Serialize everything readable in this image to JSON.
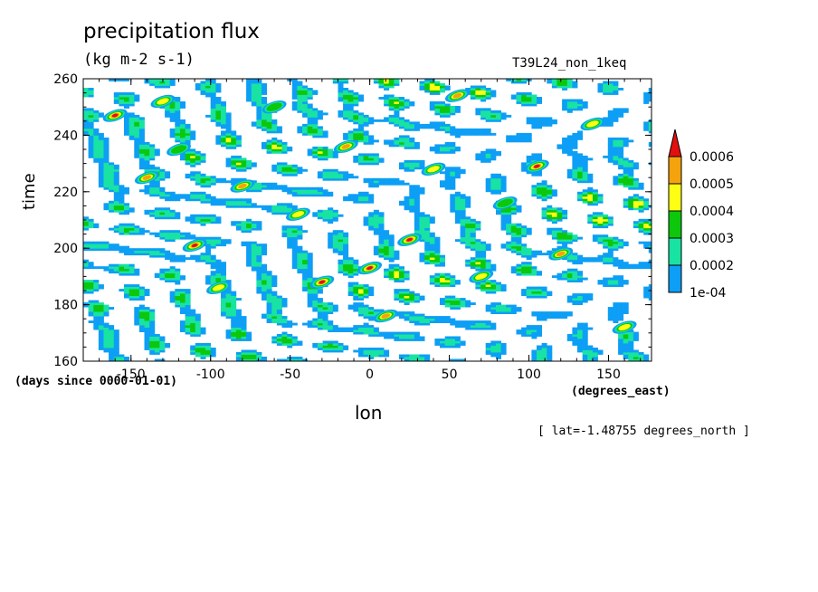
{
  "chart_data": {
    "type": "heatmap",
    "title": "precipitation flux",
    "units": "(kg m-2 s-1)",
    "run_label": "T39L24_non_1keq",
    "xlabel": "lon",
    "ylabel": "time",
    "x_unit": "(degrees_east)",
    "y_unit": "(days since 0000-01-01)",
    "annotation": "[ lat=-1.48755 degrees_north ]",
    "xlim": [
      -180,
      177
    ],
    "ylim": [
      160,
      260
    ],
    "x_ticks": [
      -150,
      -100,
      -50,
      0,
      50,
      100,
      150
    ],
    "y_ticks": [
      160,
      180,
      200,
      220,
      240,
      260
    ],
    "colorbar": {
      "levels": [
        "1e-04",
        "0.0002",
        "0.0003",
        "0.0004",
        "0.0005",
        "0.0006"
      ],
      "colors": [
        "#0d9ff5",
        "#18e3a3",
        "#0cc70c",
        "#ffff14",
        "#f5a30d",
        "#e30f0f"
      ],
      "extend": "max"
    },
    "cells": [
      {
        "lon": -160,
        "time": 247,
        "value": 0.00062
      },
      {
        "lon": -140,
        "time": 225,
        "value": 0.00055
      },
      {
        "lon": -130,
        "time": 252,
        "value": 0.00045
      },
      {
        "lon": -120,
        "time": 235,
        "value": 0.00038
      },
      {
        "lon": -110,
        "time": 201,
        "value": 0.00061
      },
      {
        "lon": -95,
        "time": 186,
        "value": 0.00042
      },
      {
        "lon": -80,
        "time": 222,
        "value": 0.00057
      },
      {
        "lon": -60,
        "time": 250,
        "value": 0.00035
      },
      {
        "lon": -45,
        "time": 212,
        "value": 0.00048
      },
      {
        "lon": -30,
        "time": 188,
        "value": 0.00063
      },
      {
        "lon": -15,
        "time": 236,
        "value": 0.00052
      },
      {
        "lon": 0,
        "time": 193,
        "value": 0.00066
      },
      {
        "lon": 10,
        "time": 176,
        "value": 0.00058
      },
      {
        "lon": 25,
        "time": 203,
        "value": 0.0006
      },
      {
        "lon": 40,
        "time": 228,
        "value": 0.00047
      },
      {
        "lon": 55,
        "time": 254,
        "value": 0.00053
      },
      {
        "lon": 70,
        "time": 190,
        "value": 0.00044
      },
      {
        "lon": 85,
        "time": 216,
        "value": 0.00039
      },
      {
        "lon": 105,
        "time": 229,
        "value": 0.00068
      },
      {
        "lon": 120,
        "time": 198,
        "value": 0.0005
      },
      {
        "lon": 140,
        "time": 244,
        "value": 0.00046
      },
      {
        "lon": 160,
        "time": 172,
        "value": 0.00041
      }
    ]
  }
}
